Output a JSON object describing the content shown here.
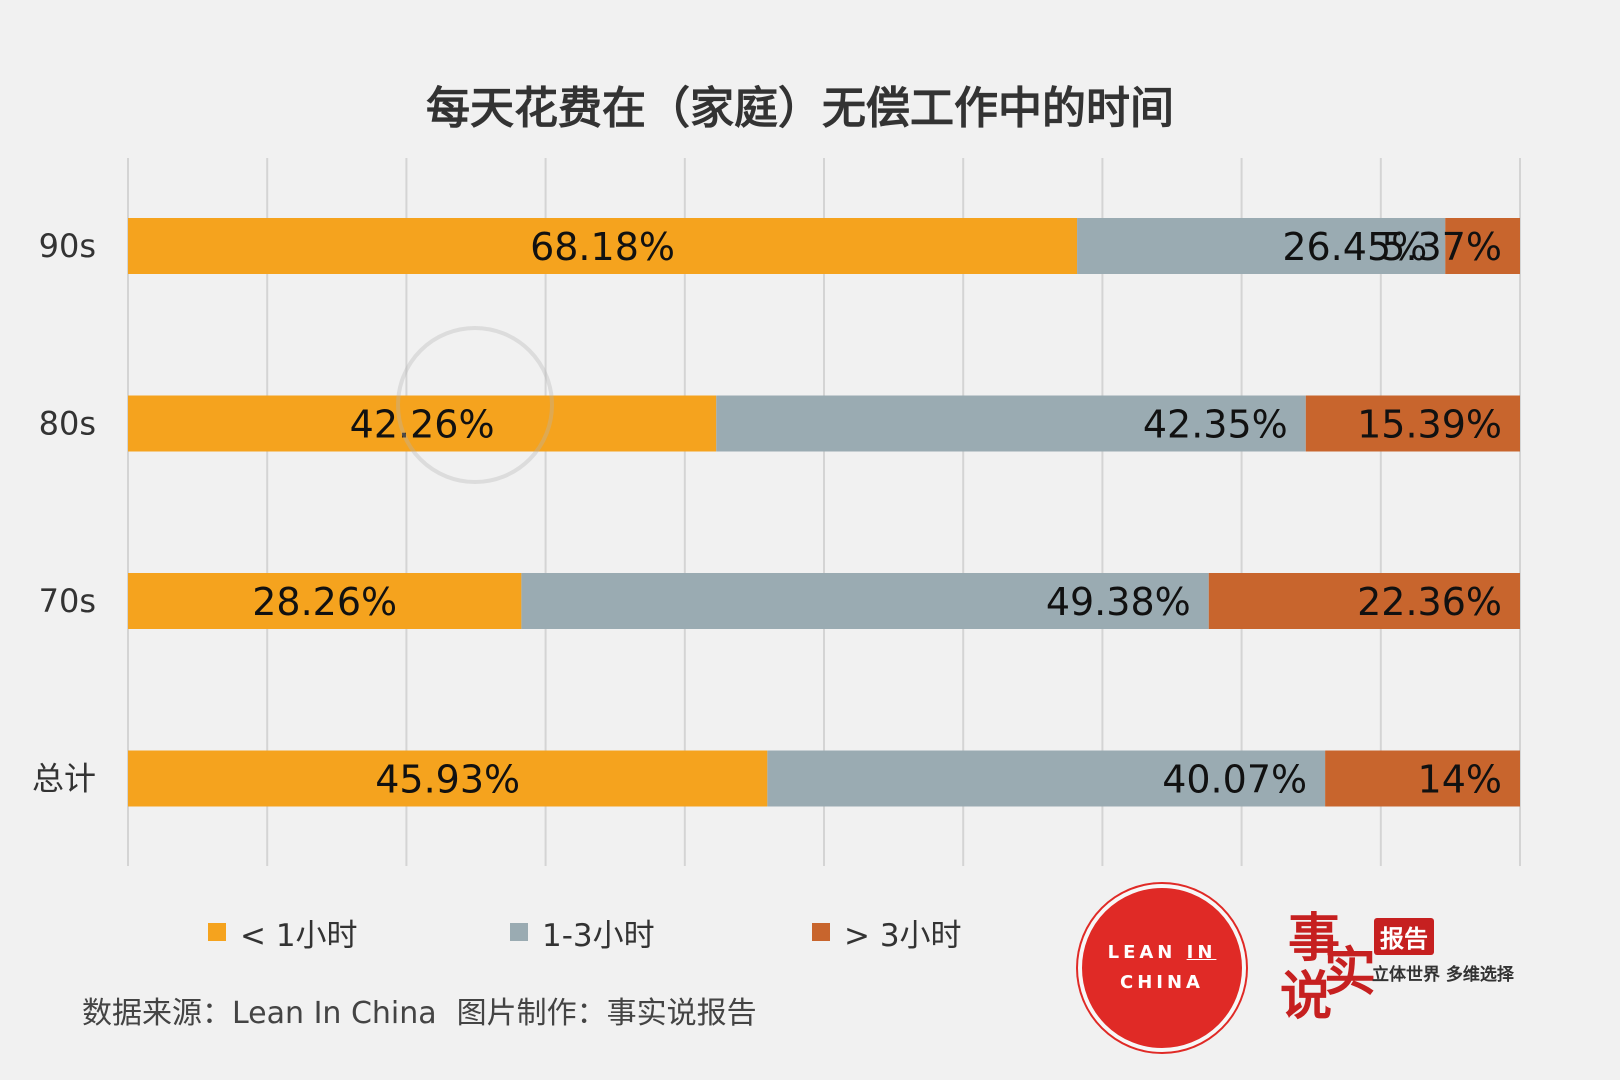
{
  "chart_data": {
    "type": "bar",
    "orientation": "horizontal",
    "stacked": true,
    "title": "每天花费在（家庭）无偿工作中的时间",
    "categories": [
      "90s",
      "80s",
      "70s",
      "总计"
    ],
    "series": [
      {
        "name": "< 1小时",
        "color": "#f5a31e",
        "values": [
          68.18,
          42.26,
          28.26,
          45.93
        ],
        "labels": [
          "68.18%",
          "42.26%",
          "28.26%",
          "45.93%"
        ]
      },
      {
        "name": "1-3小时",
        "color": "#9aabb2",
        "values": [
          26.45,
          42.35,
          49.38,
          40.07
        ],
        "labels": [
          "26.45%",
          "42.35%",
          "49.38%",
          "40.07%"
        ]
      },
      {
        "name": "> 3小时",
        "color": "#c8652d",
        "values": [
          5.37,
          15.39,
          22.36,
          14
        ],
        "labels": [
          "5.37%",
          "15.39%",
          "22.36%",
          "14%"
        ]
      }
    ],
    "xlim": [
      0,
      100
    ],
    "grid": true,
    "legend": "bottom"
  },
  "footer": {
    "source": "数据来源：Lean In China",
    "credit": "图片制作：事实说报告"
  },
  "logos": {
    "lean_in": {
      "line1": "LEAN",
      "line1b": "IN",
      "line2": "CHINA"
    },
    "ssbg": {
      "char1": "事",
      "char2": "实",
      "char3": "说",
      "badge": "报告",
      "slogan": "立体世界 多维选择"
    }
  }
}
